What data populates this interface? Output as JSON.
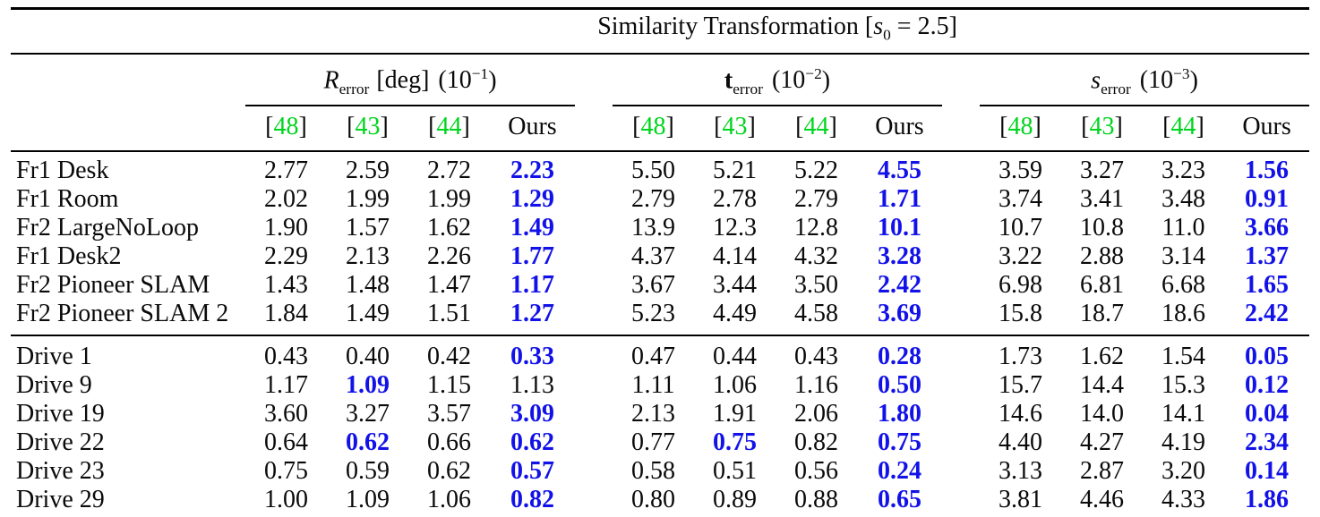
{
  "colors": {
    "text": "#0a0a0a",
    "rule": "#000000",
    "best_value": "#1212e8",
    "citation": "#00d51e"
  },
  "table": {
    "title": {
      "before": "Similarity Transformation [",
      "sym": "s",
      "sub": "0",
      "after": " = 2.5]"
    },
    "groups": [
      {
        "id": "r-error",
        "sym": "R",
        "italic": true,
        "bold": false,
        "sub": "error",
        "unit": "[deg]",
        "scale_open": "(10",
        "scale_exp": "−1",
        "scale_close": ")"
      },
      {
        "id": "t-error",
        "sym": "t",
        "italic": false,
        "bold": true,
        "sub": "error",
        "unit": "",
        "scale_open": "(10",
        "scale_exp": "−2",
        "scale_close": ")"
      },
      {
        "id": "s-error",
        "sym": "s",
        "italic": true,
        "bold": false,
        "sub": "error",
        "unit": "",
        "scale_open": "(10",
        "scale_exp": "−3",
        "scale_close": ")"
      }
    ],
    "cite_open": "[",
    "cite_close": "]",
    "col_headers": [
      {
        "num": "48",
        "cite": true
      },
      {
        "num": "43",
        "cite": true
      },
      {
        "num": "44",
        "cite": true
      },
      {
        "num": "Ours",
        "cite": false
      }
    ],
    "sections": [
      {
        "name": "tum-sequences",
        "rows": [
          {
            "label": "Fr1 Desk",
            "cells": [
              {
                "t": "2.77"
              },
              {
                "t": "2.59"
              },
              {
                "t": "2.72"
              },
              {
                "t": "2.23",
                "b": true
              },
              {
                "t": "5.50"
              },
              {
                "t": "5.21"
              },
              {
                "t": "5.22"
              },
              {
                "t": "4.55",
                "b": true
              },
              {
                "t": "3.59"
              },
              {
                "t": "3.27"
              },
              {
                "t": "3.23"
              },
              {
                "t": "1.56",
                "b": true
              }
            ]
          },
          {
            "label": "Fr1 Room",
            "cells": [
              {
                "t": "2.02"
              },
              {
                "t": "1.99"
              },
              {
                "t": "1.99"
              },
              {
                "t": "1.29",
                "b": true
              },
              {
                "t": "2.79"
              },
              {
                "t": "2.78"
              },
              {
                "t": "2.79"
              },
              {
                "t": "1.71",
                "b": true
              },
              {
                "t": "3.74"
              },
              {
                "t": "3.41"
              },
              {
                "t": "3.48"
              },
              {
                "t": "0.91",
                "b": true
              }
            ]
          },
          {
            "label": "Fr2 LargeNoLoop",
            "cells": [
              {
                "t": "1.90"
              },
              {
                "t": "1.57"
              },
              {
                "t": "1.62"
              },
              {
                "t": "1.49",
                "b": true
              },
              {
                "t": "13.9"
              },
              {
                "t": "12.3"
              },
              {
                "t": "12.8"
              },
              {
                "t": "10.1",
                "b": true
              },
              {
                "t": "10.7"
              },
              {
                "t": "10.8"
              },
              {
                "t": "11.0"
              },
              {
                "t": "3.66",
                "b": true
              }
            ]
          },
          {
            "label": "Fr1 Desk2",
            "cells": [
              {
                "t": "2.29"
              },
              {
                "t": "2.13"
              },
              {
                "t": "2.26"
              },
              {
                "t": "1.77",
                "b": true
              },
              {
                "t": "4.37"
              },
              {
                "t": "4.14"
              },
              {
                "t": "4.32"
              },
              {
                "t": "3.28",
                "b": true
              },
              {
                "t": "3.22"
              },
              {
                "t": "2.88"
              },
              {
                "t": "3.14"
              },
              {
                "t": "1.37",
                "b": true
              }
            ]
          },
          {
            "label": "Fr2 Pioneer SLAM",
            "cells": [
              {
                "t": "1.43"
              },
              {
                "t": "1.48"
              },
              {
                "t": "1.47"
              },
              {
                "t": "1.17",
                "b": true
              },
              {
                "t": "3.67"
              },
              {
                "t": "3.44"
              },
              {
                "t": "3.50"
              },
              {
                "t": "2.42",
                "b": true
              },
              {
                "t": "6.98"
              },
              {
                "t": "6.81"
              },
              {
                "t": "6.68"
              },
              {
                "t": "1.65",
                "b": true
              }
            ]
          },
          {
            "label": "Fr2 Pioneer SLAM 2",
            "cells": [
              {
                "t": "1.84"
              },
              {
                "t": "1.49"
              },
              {
                "t": "1.51"
              },
              {
                "t": "1.27",
                "b": true
              },
              {
                "t": "5.23"
              },
              {
                "t": "4.49"
              },
              {
                "t": "4.58"
              },
              {
                "t": "3.69",
                "b": true
              },
              {
                "t": "15.8"
              },
              {
                "t": "18.7"
              },
              {
                "t": "18.6"
              },
              {
                "t": "2.42",
                "b": true
              }
            ]
          }
        ]
      },
      {
        "name": "kitti-drives",
        "rows": [
          {
            "label": "Drive 1",
            "cells": [
              {
                "t": "0.43"
              },
              {
                "t": "0.40"
              },
              {
                "t": "0.42"
              },
              {
                "t": "0.33",
                "b": true
              },
              {
                "t": "0.47"
              },
              {
                "t": "0.44"
              },
              {
                "t": "0.43"
              },
              {
                "t": "0.28",
                "b": true
              },
              {
                "t": "1.73"
              },
              {
                "t": "1.62"
              },
              {
                "t": "1.54"
              },
              {
                "t": "0.05",
                "b": true
              }
            ]
          },
          {
            "label": "Drive 9",
            "cells": [
              {
                "t": "1.17"
              },
              {
                "t": "1.09",
                "b": true
              },
              {
                "t": "1.15"
              },
              {
                "t": "1.13"
              },
              {
                "t": "1.11"
              },
              {
                "t": "1.06"
              },
              {
                "t": "1.16"
              },
              {
                "t": "0.50",
                "b": true
              },
              {
                "t": "15.7"
              },
              {
                "t": "14.4"
              },
              {
                "t": "15.3"
              },
              {
                "t": "0.12",
                "b": true
              }
            ]
          },
          {
            "label": "Drive 19",
            "cells": [
              {
                "t": "3.60"
              },
              {
                "t": "3.27"
              },
              {
                "t": "3.57"
              },
              {
                "t": "3.09",
                "b": true
              },
              {
                "t": "2.13"
              },
              {
                "t": "1.91"
              },
              {
                "t": "2.06"
              },
              {
                "t": "1.80",
                "b": true
              },
              {
                "t": "14.6"
              },
              {
                "t": "14.0"
              },
              {
                "t": "14.1"
              },
              {
                "t": "0.04",
                "b": true
              }
            ]
          },
          {
            "label": "Drive 22",
            "cells": [
              {
                "t": "0.64"
              },
              {
                "t": "0.62",
                "b": true
              },
              {
                "t": "0.66"
              },
              {
                "t": "0.62",
                "b": true
              },
              {
                "t": "0.77"
              },
              {
                "t": "0.75",
                "b": true
              },
              {
                "t": "0.82"
              },
              {
                "t": "0.75",
                "b": true
              },
              {
                "t": "4.40"
              },
              {
                "t": "4.27"
              },
              {
                "t": "4.19"
              },
              {
                "t": "2.34",
                "b": true
              }
            ]
          },
          {
            "label": "Drive 23",
            "cells": [
              {
                "t": "0.75"
              },
              {
                "t": "0.59"
              },
              {
                "t": "0.62"
              },
              {
                "t": "0.57",
                "b": true
              },
              {
                "t": "0.58"
              },
              {
                "t": "0.51"
              },
              {
                "t": "0.56"
              },
              {
                "t": "0.24",
                "b": true
              },
              {
                "t": "3.13"
              },
              {
                "t": "2.87"
              },
              {
                "t": "3.20"
              },
              {
                "t": "0.14",
                "b": true
              }
            ]
          },
          {
            "label": "Drive 29",
            "cells": [
              {
                "t": "1.00"
              },
              {
                "t": "1.09"
              },
              {
                "t": "1.06"
              },
              {
                "t": "0.82",
                "b": true
              },
              {
                "t": "0.80"
              },
              {
                "t": "0.89"
              },
              {
                "t": "0.88"
              },
              {
                "t": "0.65",
                "b": true
              },
              {
                "t": "3.81"
              },
              {
                "t": "4.46"
              },
              {
                "t": "4.33"
              },
              {
                "t": "1.86",
                "b": true
              }
            ]
          }
        ]
      }
    ]
  }
}
